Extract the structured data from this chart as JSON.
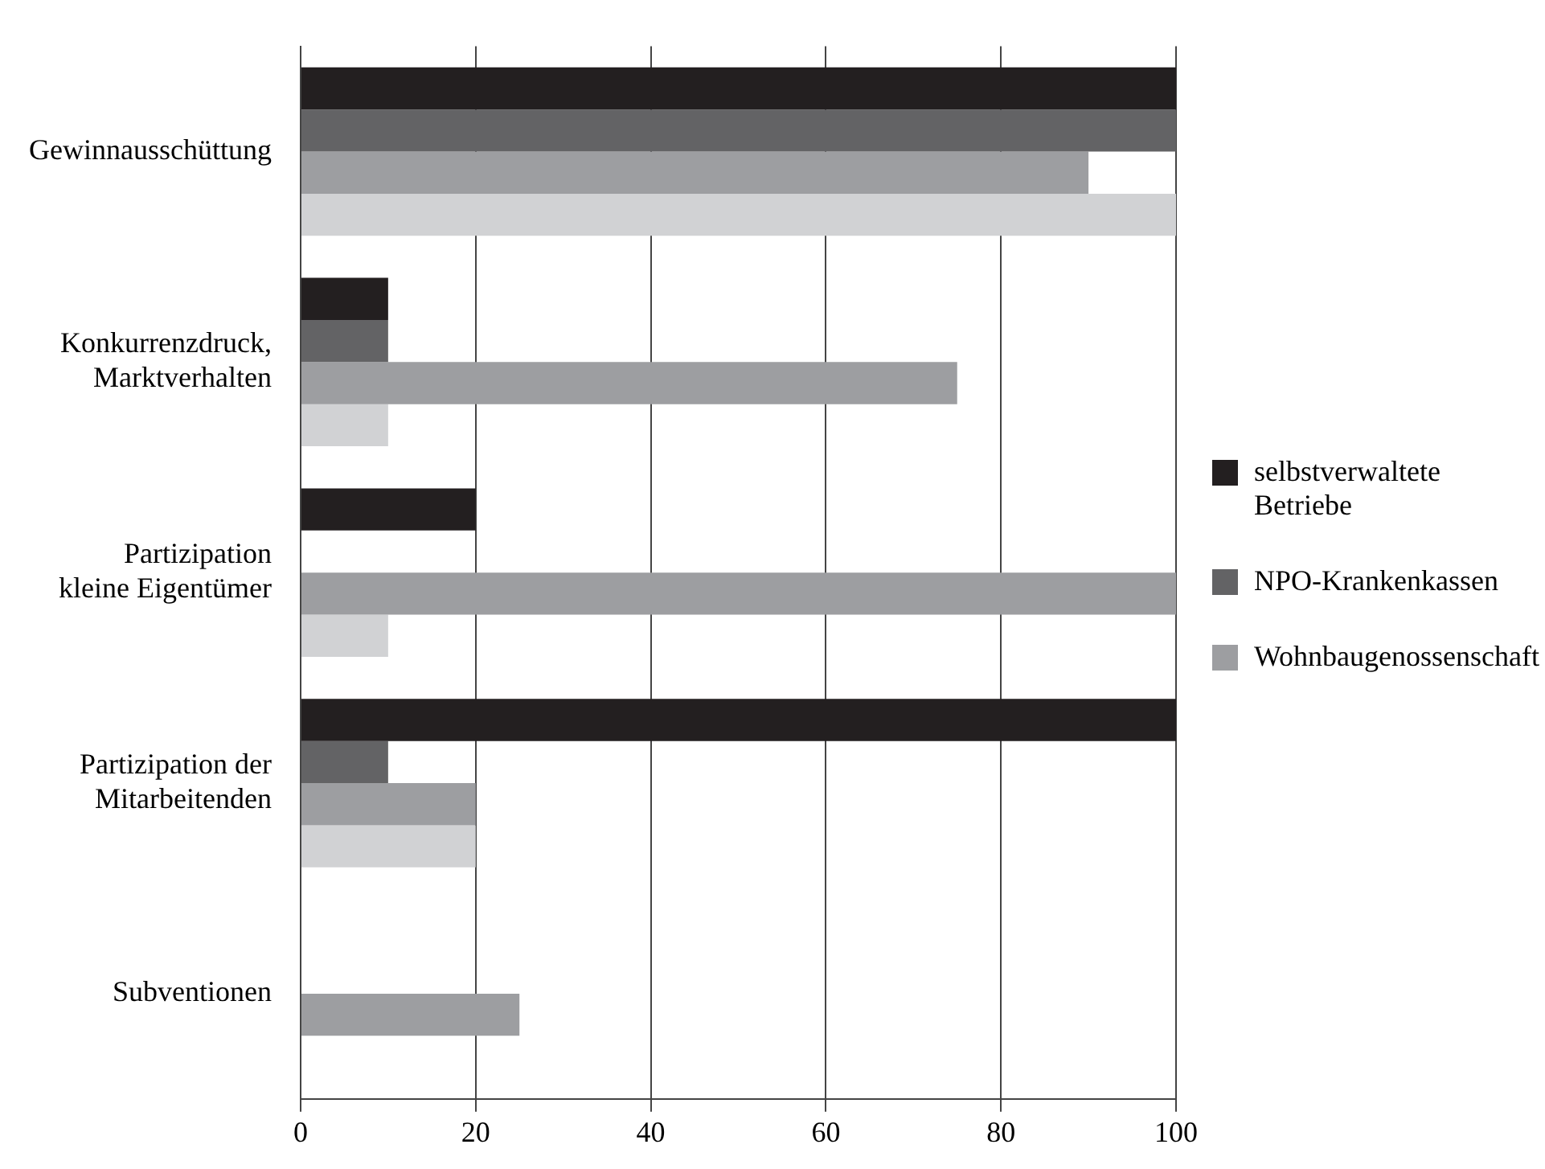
{
  "chart_data": {
    "type": "bar",
    "orientation": "horizontal",
    "categories": [
      "Gewinnausschüttung",
      "Konkurrenzdruck, Marktverhalten",
      "Partizipation kleine Eigentümer",
      "Partizipation der Mitarbeitenden",
      "Subventionen"
    ],
    "series": [
      {
        "name": "selbstverwaltete Betriebe",
        "color": "#231f20",
        "values": [
          100,
          10,
          20,
          100,
          0
        ]
      },
      {
        "name": "NPO-Krankenkassen",
        "color": "#636365",
        "values": [
          100,
          10,
          0,
          10,
          0
        ]
      },
      {
        "name": "Wohnbaugenossenschaft",
        "color": "#9d9ea1",
        "values": [
          90,
          75,
          100,
          20,
          25
        ]
      },
      {
        "color": "#d1d2d4",
        "values": [
          100,
          10,
          10,
          20,
          0
        ]
      }
    ],
    "xlim": [
      0,
      100
    ],
    "xticks": [
      0,
      20,
      40,
      60,
      80,
      100
    ],
    "grid": "x",
    "legend": "right"
  }
}
